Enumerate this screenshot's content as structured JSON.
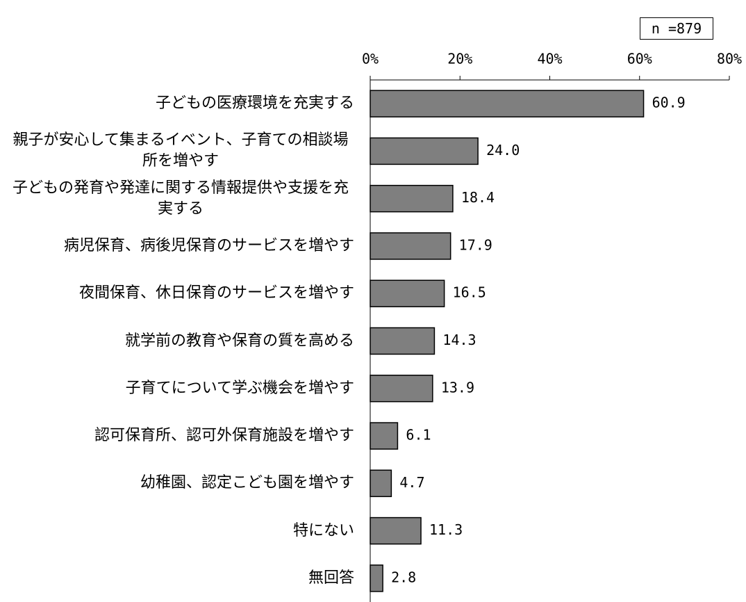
{
  "chart_data": {
    "type": "barh",
    "annotation": "n =879",
    "categories": [
      "子どもの医療環境を充実する",
      "親子が安心して集まるイベント、子育ての相談場所を増やす",
      "子どもの発育や発達に関する情報提供や支援を充実する",
      "病児保育、病後児保育のサービスを増やす",
      "夜間保育、休日保育のサービスを増やす",
      "就学前の教育や保育の質を高める",
      "子育てについて学ぶ機会を増やす",
      "認可保育所、認可外保育施設を増やす",
      "幼稚園、認定こども園を増やす",
      "特にない",
      "無回答"
    ],
    "values": [
      60.9,
      24.0,
      18.4,
      17.9,
      16.5,
      14.3,
      13.9,
      6.1,
      4.7,
      11.3,
      2.8
    ],
    "value_labels": [
      "60.9",
      "24.0",
      "18.4",
      "17.9",
      "16.5",
      "14.3",
      "13.9",
      "6.1",
      "4.7",
      "11.3",
      "2.8"
    ],
    "color": "#7f7f7f",
    "xlim": [
      0,
      80
    ],
    "xticks": [
      {
        "value": 0,
        "label": "0%"
      },
      {
        "value": 20,
        "label": "20%"
      },
      {
        "value": 40,
        "label": "40%"
      },
      {
        "value": 60,
        "label": "60%"
      },
      {
        "value": 80,
        "label": "80%"
      }
    ]
  }
}
